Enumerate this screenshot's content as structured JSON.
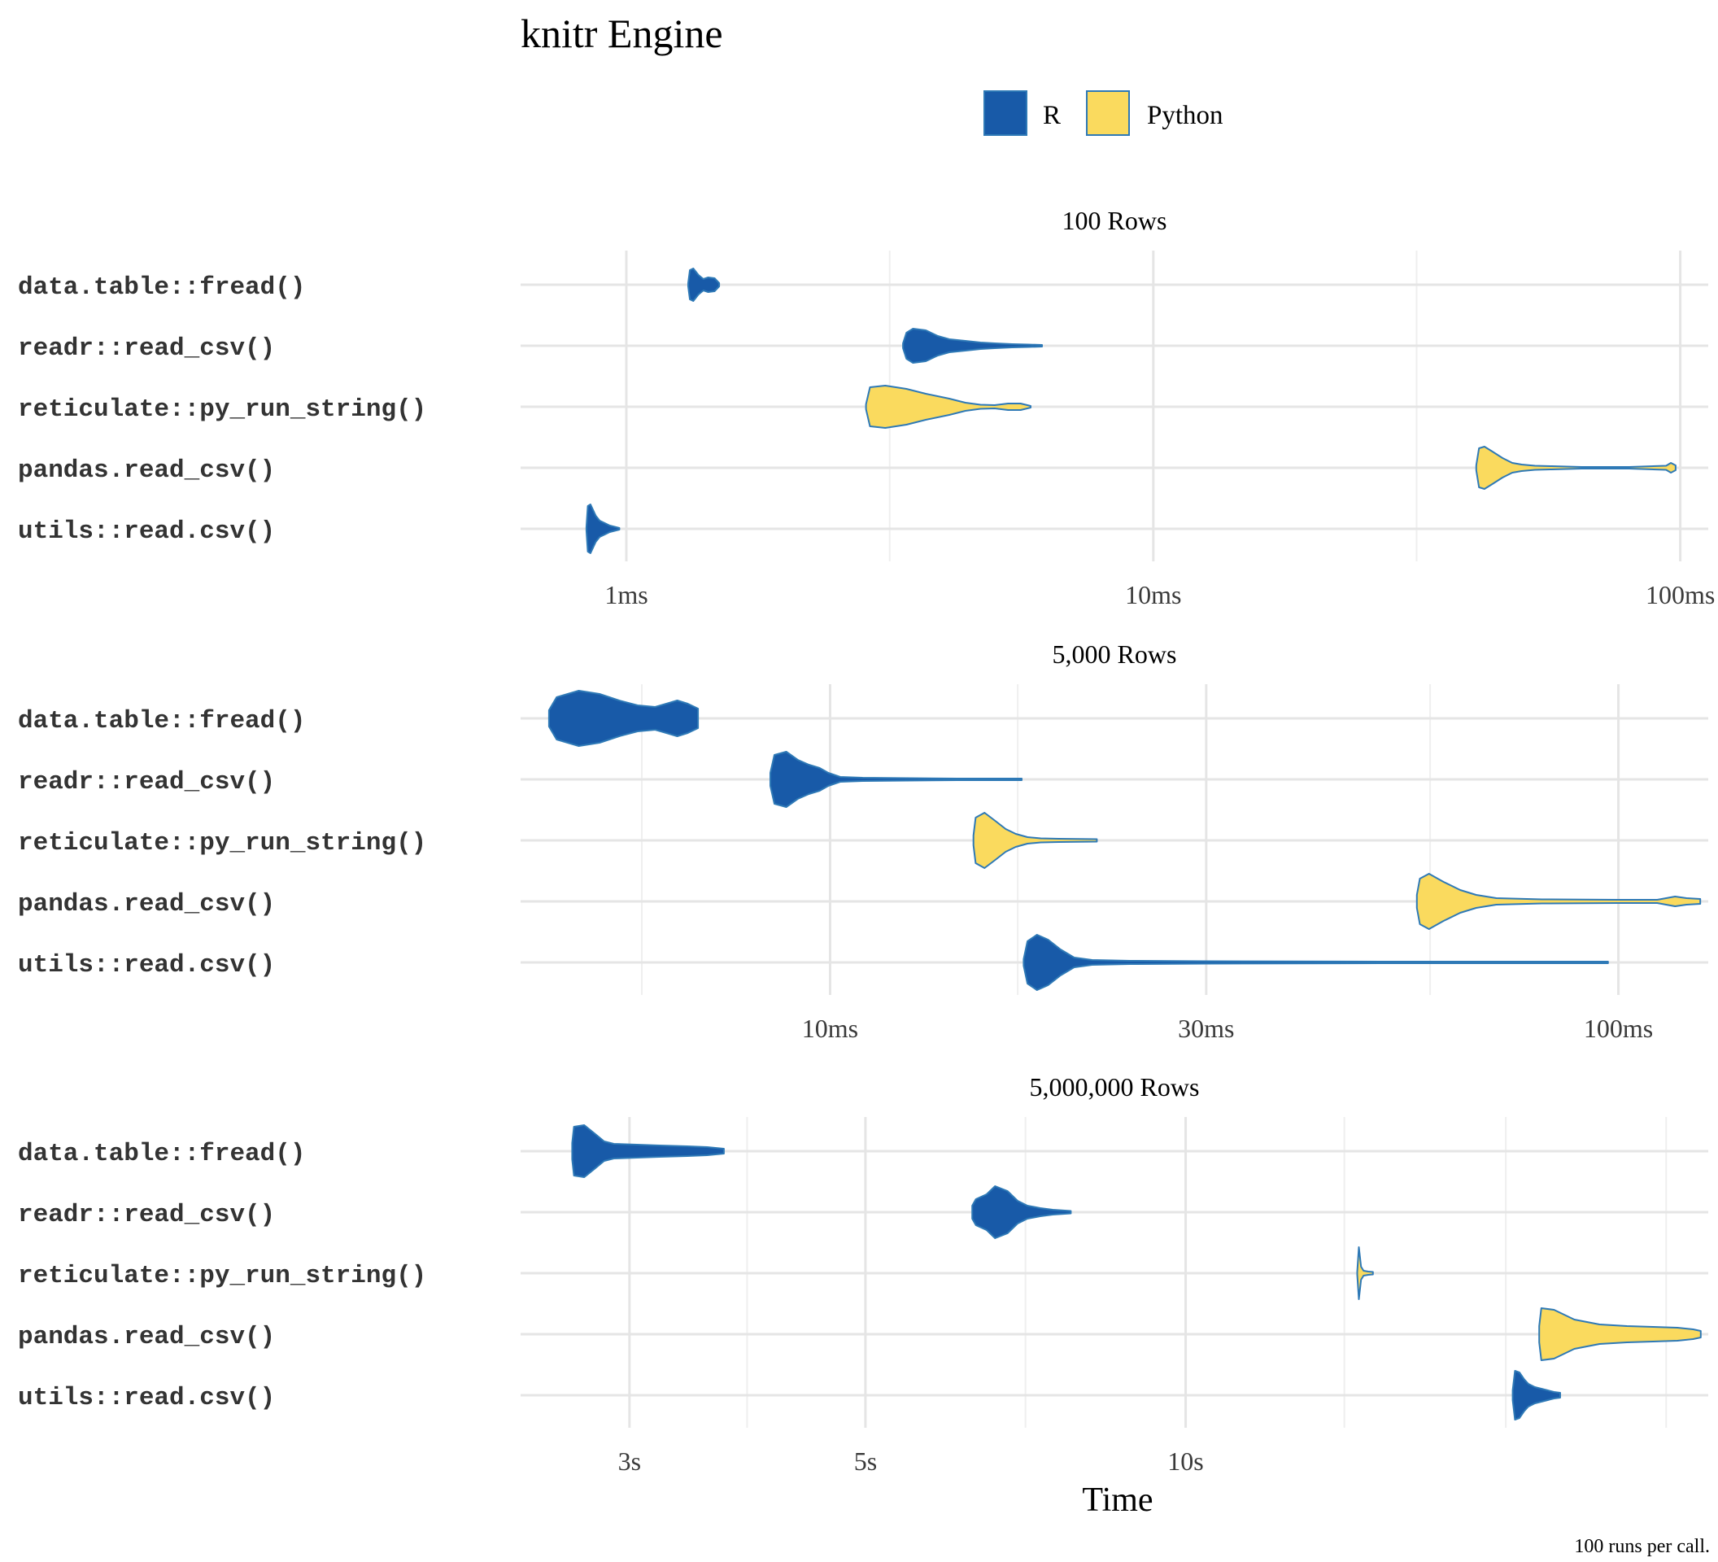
{
  "colors": {
    "R": "#185AA8",
    "Python": "#FADA5E",
    "outline": "#2E79B6",
    "outlier": "#B8BEC6",
    "grid": "#E5E5E5",
    "text": "#000000",
    "tick_text": "#3A3A3A"
  },
  "chart_data": {
    "type": "violin",
    "title": "knitr Engine",
    "xlabel": "Time",
    "caption": "100 runs per call.",
    "legend": {
      "placement": "top",
      "items": [
        {
          "key": "R",
          "label": "R"
        },
        {
          "key": "Python",
          "label": "Python"
        }
      ]
    },
    "categories": [
      "data.table::fread()",
      "readr::read_csv()",
      "reticulate::py_run_string()",
      "pandas.read_csv()",
      "utils::read.csv()"
    ],
    "category_language": [
      "R",
      "R",
      "Python",
      "Python",
      "R"
    ],
    "x_scale": "log",
    "grid": true,
    "panels": [
      {
        "title": "100 Rows",
        "unit": "ms",
        "xlim": [
          0.63,
          113
        ],
        "major_ticks": [
          1,
          10,
          100
        ],
        "minor_ticks": [
          3.16,
          31.6
        ],
        "tick_labels": [
          "1ms",
          "10ms",
          "100ms"
        ],
        "series": [
          {
            "category": "data.table::fread()",
            "min": 1.31,
            "max": 1.5,
            "profile": [
              [
                1.31,
                2
              ],
              [
                1.32,
                18
              ],
              [
                1.34,
                20
              ],
              [
                1.37,
                12
              ],
              [
                1.4,
                7
              ],
              [
                1.43,
                9
              ],
              [
                1.47,
                8
              ],
              [
                1.5,
                2
              ]
            ]
          },
          {
            "category": "readr::read_csv()",
            "min": 3.35,
            "max": 6.15,
            "profile": [
              [
                3.35,
                3
              ],
              [
                3.4,
                16
              ],
              [
                3.5,
                21
              ],
              [
                3.7,
                19
              ],
              [
                3.9,
                12
              ],
              [
                4.1,
                8
              ],
              [
                4.4,
                6
              ],
              [
                4.7,
                4
              ],
              [
                5.0,
                3
              ],
              [
                5.4,
                2
              ],
              [
                5.8,
                1.5
              ],
              [
                6.15,
                1
              ]
            ]
          },
          {
            "category": "reticulate::py_run_string()",
            "min": 2.85,
            "max": 5.85,
            "profile": [
              [
                2.85,
                3
              ],
              [
                2.9,
                24
              ],
              [
                3.1,
                26
              ],
              [
                3.4,
                22
              ],
              [
                3.7,
                16
              ],
              [
                4.1,
                10
              ],
              [
                4.4,
                5
              ],
              [
                4.7,
                2.5
              ],
              [
                5.0,
                2
              ],
              [
                5.3,
                4
              ],
              [
                5.6,
                4
              ],
              [
                5.85,
                1
              ]
            ]
          },
          {
            "category": "pandas.read_csv()",
            "min": 41,
            "max": 98,
            "profile": [
              [
                41,
                3
              ],
              [
                41.5,
                24
              ],
              [
                42.5,
                26
              ],
              [
                44,
                20
              ],
              [
                46,
                12
              ],
              [
                48,
                6
              ],
              [
                50,
                4
              ],
              [
                53,
                2.5
              ],
              [
                57,
                2
              ],
              [
                65,
                1
              ],
              [
                80,
                1
              ],
              [
                94,
                2.5
              ],
              [
                96,
                6
              ],
              [
                98,
                3
              ]
            ]
          },
          {
            "category": "utils::read.csv()",
            "min": 0.84,
            "max": 0.97,
            "profile": [
              [
                0.84,
                2
              ],
              [
                0.845,
                28
              ],
              [
                0.855,
                30
              ],
              [
                0.875,
                16
              ],
              [
                0.89,
                10
              ],
              [
                0.91,
                7
              ],
              [
                0.93,
                4
              ],
              [
                0.97,
                1
              ]
            ]
          }
        ]
      },
      {
        "title": "5,000 Rows",
        "unit": "ms",
        "xlim": [
          4.05,
          130
        ],
        "major_ticks": [
          10,
          30,
          100
        ],
        "minor_ticks": [
          5.77,
          17.3,
          57.7
        ],
        "tick_labels": [
          "10ms",
          "30ms",
          "100ms"
        ],
        "series": [
          {
            "category": "data.table::fread()",
            "min": 4.4,
            "max": 6.8,
            "profile": [
              [
                4.4,
                10
              ],
              [
                4.5,
                26
              ],
              [
                4.8,
                34
              ],
              [
                5.1,
                30
              ],
              [
                5.4,
                22
              ],
              [
                5.7,
                16
              ],
              [
                6.0,
                14
              ],
              [
                6.2,
                18
              ],
              [
                6.4,
                22
              ],
              [
                6.6,
                18
              ],
              [
                6.8,
                12
              ]
            ]
          },
          {
            "category": "readr::read_csv()",
            "min": 8.4,
            "max": 17.5,
            "profile": [
              [
                8.4,
                8
              ],
              [
                8.5,
                30
              ],
              [
                8.8,
                34
              ],
              [
                9.1,
                24
              ],
              [
                9.4,
                18
              ],
              [
                9.7,
                14
              ],
              [
                9.95,
                8
              ],
              [
                10.3,
                3
              ],
              [
                11,
                2
              ],
              [
                12.5,
                1.5
              ],
              [
                14.5,
                1
              ],
              [
                17.5,
                1
              ]
            ]
          },
          {
            "category": "reticulate::py_run_string()",
            "min": 15.2,
            "max": 21.8,
            "profile": [
              [
                15.2,
                6
              ],
              [
                15.3,
                28
              ],
              [
                15.7,
                34
              ],
              [
                16.2,
                24
              ],
              [
                16.7,
                14
              ],
              [
                17.2,
                8
              ],
              [
                17.8,
                4
              ],
              [
                18.5,
                2.5
              ],
              [
                19.5,
                2
              ],
              [
                21.8,
                1.5
              ]
            ]
          },
          {
            "category": "pandas.read_csv()",
            "min": 55.5,
            "max": 127,
            "profile": [
              [
                55.5,
                8
              ],
              [
                56,
                28
              ],
              [
                57.5,
                34
              ],
              [
                60,
                24
              ],
              [
                63,
                14
              ],
              [
                66,
                8
              ],
              [
                70,
                4
              ],
              [
                80,
                2.5
              ],
              [
                100,
                2
              ],
              [
                112,
                2
              ],
              [
                118,
                6
              ],
              [
                122,
                4
              ],
              [
                127,
                3
              ]
            ]
          },
          {
            "category": "utils::read.csv()",
            "min": 17.6,
            "max": 97,
            "profile": [
              [
                17.6,
                4
              ],
              [
                17.8,
                26
              ],
              [
                18.3,
                34
              ],
              [
                18.9,
                28
              ],
              [
                19.6,
                16
              ],
              [
                20.4,
                6
              ],
              [
                21.5,
                3
              ],
              [
                24,
                2
              ],
              [
                30,
                1.5
              ],
              [
                50,
                1
              ],
              [
                75,
                1
              ],
              [
                97,
                1
              ]
            ]
          }
        ]
      },
      {
        "title": "5,000,000 Rows",
        "unit": "s",
        "xlim": [
          2.37,
          31
        ],
        "major_ticks": [
          3,
          5,
          10
        ],
        "minor_ticks": [
          3.87,
          7.07,
          14.1,
          20,
          28.3
        ],
        "tick_labels": [
          "3s",
          "5s",
          "10s"
        ],
        "series": [
          {
            "category": "data.table::fread()",
            "min": 2.65,
            "max": 3.68,
            "profile": [
              [
                2.65,
                10
              ],
              [
                2.66,
                30
              ],
              [
                2.72,
                32
              ],
              [
                2.78,
                22
              ],
              [
                2.84,
                12
              ],
              [
                2.9,
                9
              ],
              [
                3.05,
                8
              ],
              [
                3.2,
                7
              ],
              [
                3.4,
                6
              ],
              [
                3.55,
                5
              ],
              [
                3.68,
                3
              ]
            ]
          },
          {
            "category": "readr::read_csv()",
            "min": 6.3,
            "max": 7.8,
            "profile": [
              [
                6.3,
                8
              ],
              [
                6.35,
                16
              ],
              [
                6.5,
                22
              ],
              [
                6.62,
                32
              ],
              [
                6.8,
                26
              ],
              [
                6.95,
                14
              ],
              [
                7.1,
                8
              ],
              [
                7.3,
                5
              ],
              [
                7.5,
                3
              ],
              [
                7.8,
                1.5
              ]
            ]
          },
          {
            "category": "reticulate::py_run_string()",
            "min": 14.5,
            "max": 15.0,
            "profile": [
              [
                14.5,
                2
              ],
              [
                14.55,
                32
              ],
              [
                14.62,
                8
              ],
              [
                14.7,
                3
              ],
              [
                14.85,
                2
              ],
              [
                15.0,
                1.5
              ]
            ]
          },
          {
            "category": "pandas.read_csv()",
            "min": 21.5,
            "max": 30.5,
            "profile": [
              [
                21.5,
                10
              ],
              [
                21.6,
                32
              ],
              [
                22.2,
                30
              ],
              [
                23.2,
                18
              ],
              [
                24.5,
                12
              ],
              [
                26,
                10
              ],
              [
                27.5,
                9
              ],
              [
                29,
                8
              ],
              [
                30,
                6
              ],
              [
                30.5,
                4
              ]
            ]
          },
          {
            "category": "utils::read.csv()",
            "min": 20.3,
            "max": 22.5,
            "profile": [
              [
                20.3,
                6
              ],
              [
                20.4,
                30
              ],
              [
                20.6,
                28
              ],
              [
                20.8,
                20
              ],
              [
                21.0,
                14
              ],
              [
                21.3,
                10
              ],
              [
                21.6,
                8
              ],
              [
                21.9,
                6
              ],
              [
                22.2,
                4
              ],
              [
                22.5,
                3
              ]
            ]
          }
        ]
      }
    ]
  }
}
